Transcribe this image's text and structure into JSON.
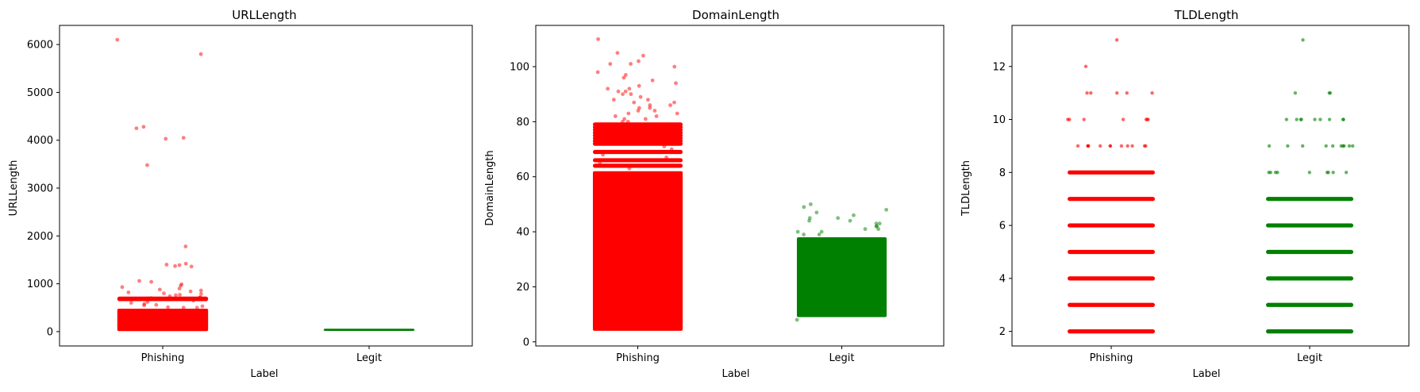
{
  "colors": {
    "phishing": "#ff0000",
    "legit": "#008000",
    "axes": "#000000",
    "background": "#ffffff"
  },
  "chart_data": [
    {
      "type": "scatter",
      "subtype": "strip",
      "title": "URLLength",
      "xlabel": "Label",
      "ylabel": "URLLength",
      "categories": [
        "Phishing",
        "Legit"
      ],
      "ylim": [
        -300,
        6400
      ],
      "yticks": [
        0,
        1000,
        2000,
        3000,
        4000,
        5000,
        6000
      ],
      "grid": false,
      "series": [
        {
          "color": "#ff0000",
          "dense_range": [
            10,
            480
          ],
          "bands": [
            690,
            680
          ],
          "points": [
            6100,
            5800,
            4280,
            4250,
            4050,
            4030,
            3480,
            1780,
            1420,
            1400,
            1390,
            1370,
            1360,
            1060,
            1040,
            990,
            960,
            930,
            900,
            880,
            860,
            840,
            820,
            800,
            790,
            770,
            760,
            740,
            720,
            710,
            700,
            695,
            650,
            620,
            600,
            580,
            560,
            550,
            530,
            510,
            500,
            500
          ]
        },
        {
          "color": "#008000",
          "dense_range": [
            15,
            60
          ],
          "bands": [],
          "points": []
        }
      ]
    },
    {
      "type": "scatter",
      "subtype": "strip",
      "title": "DomainLength",
      "xlabel": "Label",
      "ylabel": "DomainLength",
      "categories": [
        "Phishing",
        "Legit"
      ],
      "ylim": [
        -1.5,
        115
      ],
      "yticks": [
        0,
        20,
        40,
        60,
        80,
        100
      ],
      "grid": false,
      "series": [
        {
          "color": "#ff0000",
          "dense_range": [
            4,
            62
          ],
          "bands": [
            79,
            78,
            77,
            76,
            75,
            74,
            73,
            72,
            69,
            66,
            64
          ],
          "points": [
            110,
            105,
            104,
            102,
            101,
            101,
            100,
            98,
            97,
            96,
            95,
            94,
            93,
            92,
            92,
            91,
            91,
            90,
            90,
            89,
            88,
            88,
            87,
            87,
            86,
            86,
            85,
            85,
            84,
            84,
            83,
            83,
            82,
            82,
            81,
            81,
            80,
            80,
            71,
            70,
            68,
            67,
            65,
            63
          ]
        },
        {
          "color": "#008000",
          "dense_range": [
            9,
            38
          ],
          "bands": [],
          "points": [
            50,
            49,
            48,
            47,
            46,
            45,
            45,
            44,
            44,
            43,
            43,
            42,
            42,
            41,
            41,
            40,
            40,
            39,
            39,
            8
          ]
        }
      ]
    },
    {
      "type": "scatter",
      "subtype": "strip",
      "title": "TLDLength",
      "xlabel": "Label",
      "ylabel": "TLDLength",
      "categories": [
        "Phishing",
        "Legit"
      ],
      "ylim": [
        1.45,
        13.55
      ],
      "yticks": [
        2,
        4,
        6,
        8,
        10,
        12
      ],
      "grid": false,
      "series": [
        {
          "color": "#ff0000",
          "dense_range": null,
          "bands": [
            2,
            3,
            4,
            5,
            6,
            7,
            8
          ],
          "level_points": [
            {
              "y": 9,
              "count": 12
            },
            {
              "y": 10,
              "count": 7
            },
            {
              "y": 11,
              "count": 5
            },
            {
              "y": 12,
              "count": 1
            },
            {
              "y": 13,
              "count": 1
            }
          ]
        },
        {
          "color": "#008000",
          "dense_range": null,
          "bands": [
            2,
            3,
            4,
            5,
            6,
            7
          ],
          "level_points": [
            {
              "y": 8,
              "count": 9
            },
            {
              "y": 9,
              "count": 10
            },
            {
              "y": 10,
              "count": 9
            },
            {
              "y": 11,
              "count": 3
            },
            {
              "y": 13,
              "count": 1
            }
          ]
        }
      ]
    }
  ]
}
